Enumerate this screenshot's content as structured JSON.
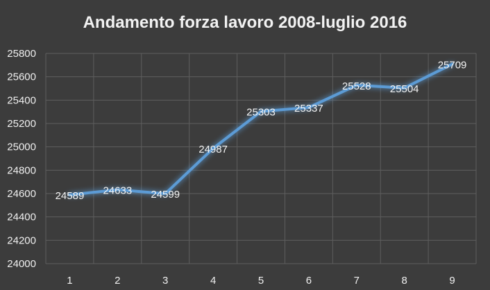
{
  "chart_data": {
    "type": "line",
    "title": "Andamento forza lavoro 2008-luglio 2016",
    "xlabel": "",
    "ylabel": "",
    "categories": [
      "1",
      "2",
      "3",
      "4",
      "5",
      "6",
      "7",
      "8",
      "9"
    ],
    "series": [
      {
        "values": [
          24589,
          24633,
          24599,
          24987,
          25303,
          25337,
          25528,
          25504,
          25709
        ]
      }
    ],
    "data_labels": [
      "24589",
      "24633",
      "24599",
      "24987",
      "25303",
      "25337",
      "25528",
      "25504",
      "25709"
    ],
    "y_ticks": [
      "24000",
      "24200",
      "24400",
      "24600",
      "24800",
      "25000",
      "25200",
      "25400",
      "25600",
      "25800"
    ],
    "ylim": [
      24000,
      25800
    ],
    "grid": true,
    "legend": "none",
    "colors": {
      "background": "#3c3c3c",
      "line": "#5b9bd5",
      "grid": "#5e5e5e",
      "text": "#f0f0f0"
    }
  }
}
